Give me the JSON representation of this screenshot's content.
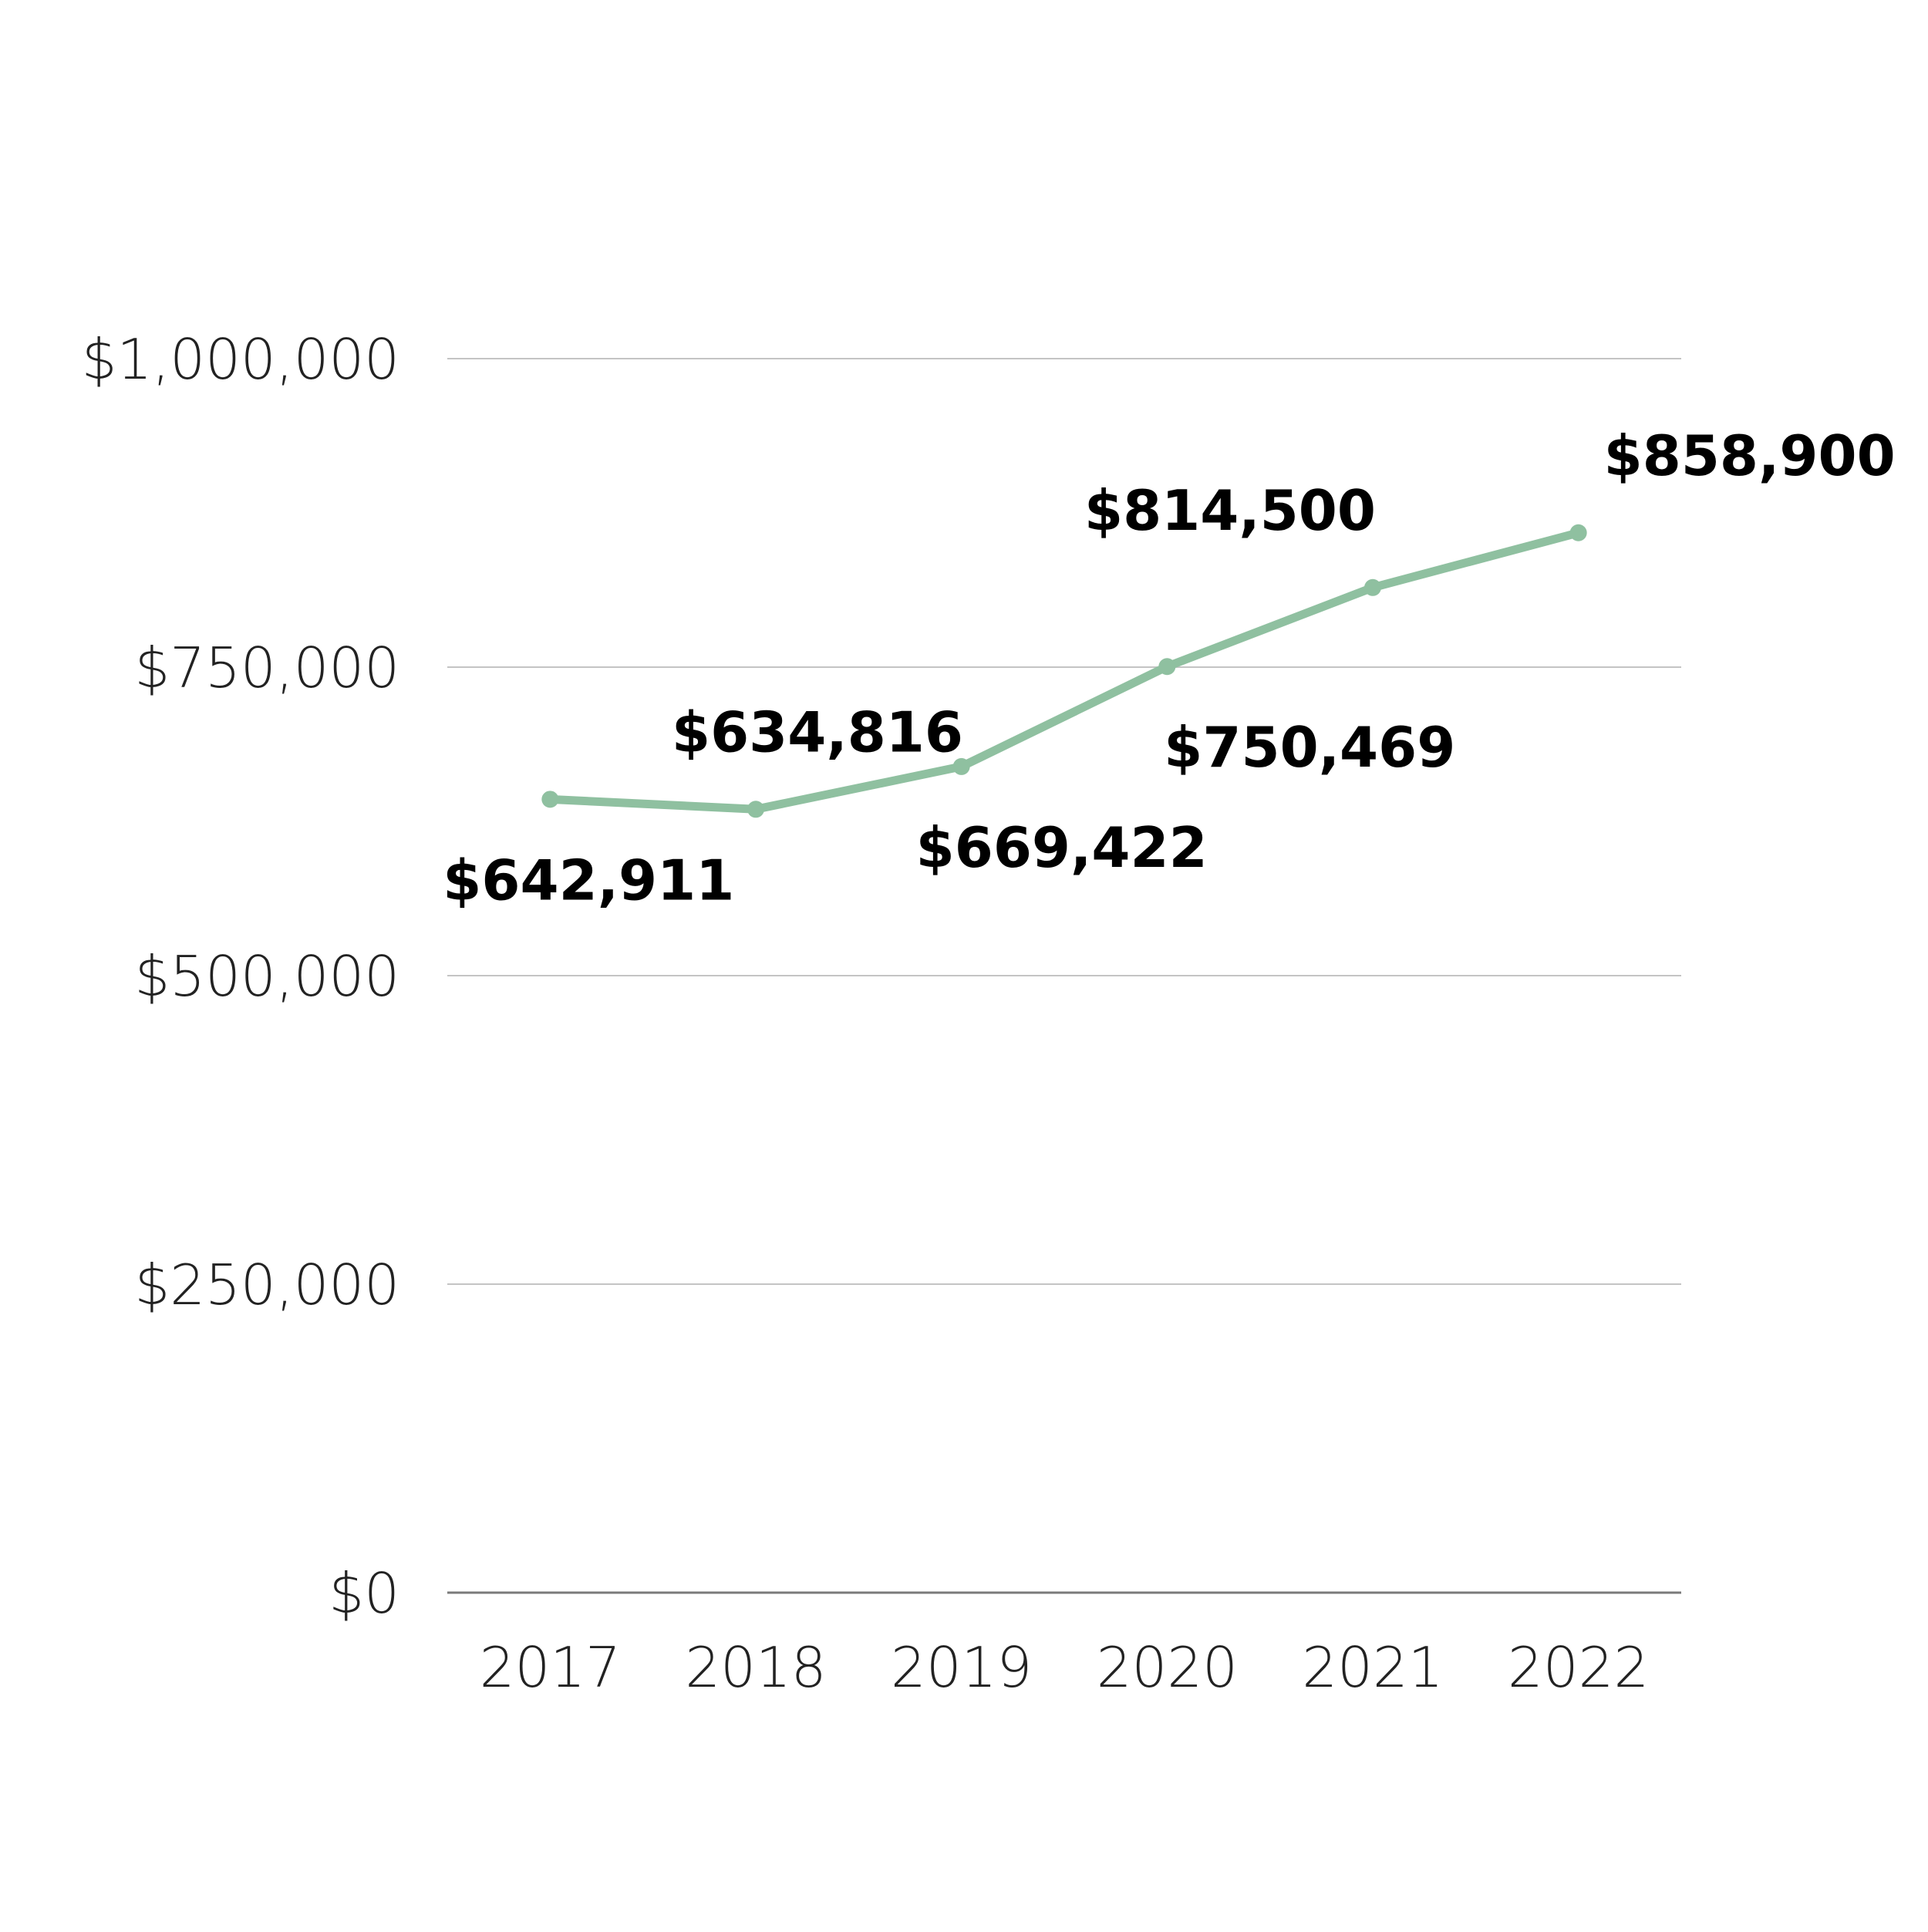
{
  "chart_data": {
    "type": "line",
    "title": "",
    "xlabel": "",
    "ylabel": "",
    "categories": [
      "2017",
      "2018",
      "2019",
      "2020",
      "2021",
      "2022"
    ],
    "series": [
      {
        "values": [
          642911,
          634816,
          669422,
          750469,
          814500,
          858900
        ],
        "labels": [
          "$642,911",
          "$634,816",
          "$669,422",
          "$750,469",
          "$814,500",
          "$858,900"
        ],
        "color": "#8fc0a0"
      }
    ],
    "ylim": [
      0,
      1000000
    ],
    "yticks": [
      0,
      250000,
      500000,
      750000,
      1000000
    ],
    "ytick_labels": [
      "$0",
      "$250,000",
      "$500,000",
      "$750,000",
      "$1,000,000"
    ],
    "grid": true,
    "legend": "none",
    "colors": {
      "gridline": "#c4c4c4",
      "baseline": "#7a7a7a",
      "tick_text": "#222222",
      "data_label_text": "#000000"
    }
  }
}
